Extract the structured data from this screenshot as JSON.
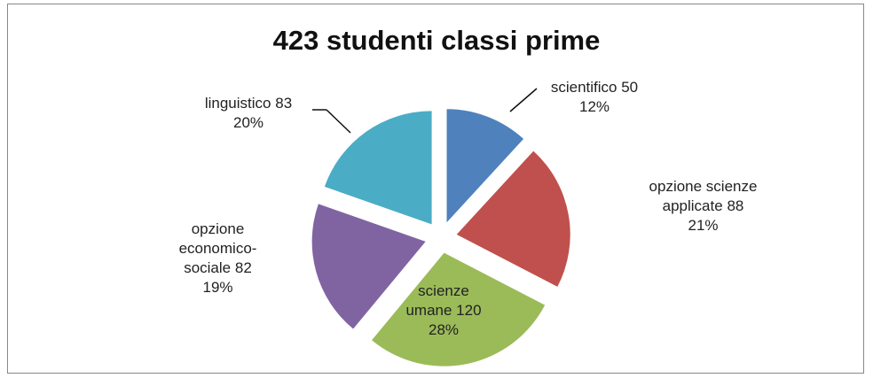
{
  "chart_data": {
    "type": "pie",
    "title": "423 studenti classi prime",
    "categories": [
      "scientifico",
      "opzione scienze applicate",
      "scienze umane",
      "opzione economico-sociale",
      "linguistico"
    ],
    "values": [
      50,
      88,
      120,
      82,
      83
    ],
    "percents": [
      12,
      21,
      28,
      19,
      20
    ],
    "percent_labels": [
      "12%",
      "21%",
      "28%",
      "19%",
      "20%"
    ],
    "colors": [
      "#4f81bd",
      "#c0504d",
      "#9bbb59",
      "#8064a2",
      "#4bacc6"
    ],
    "exploded": true
  }
}
